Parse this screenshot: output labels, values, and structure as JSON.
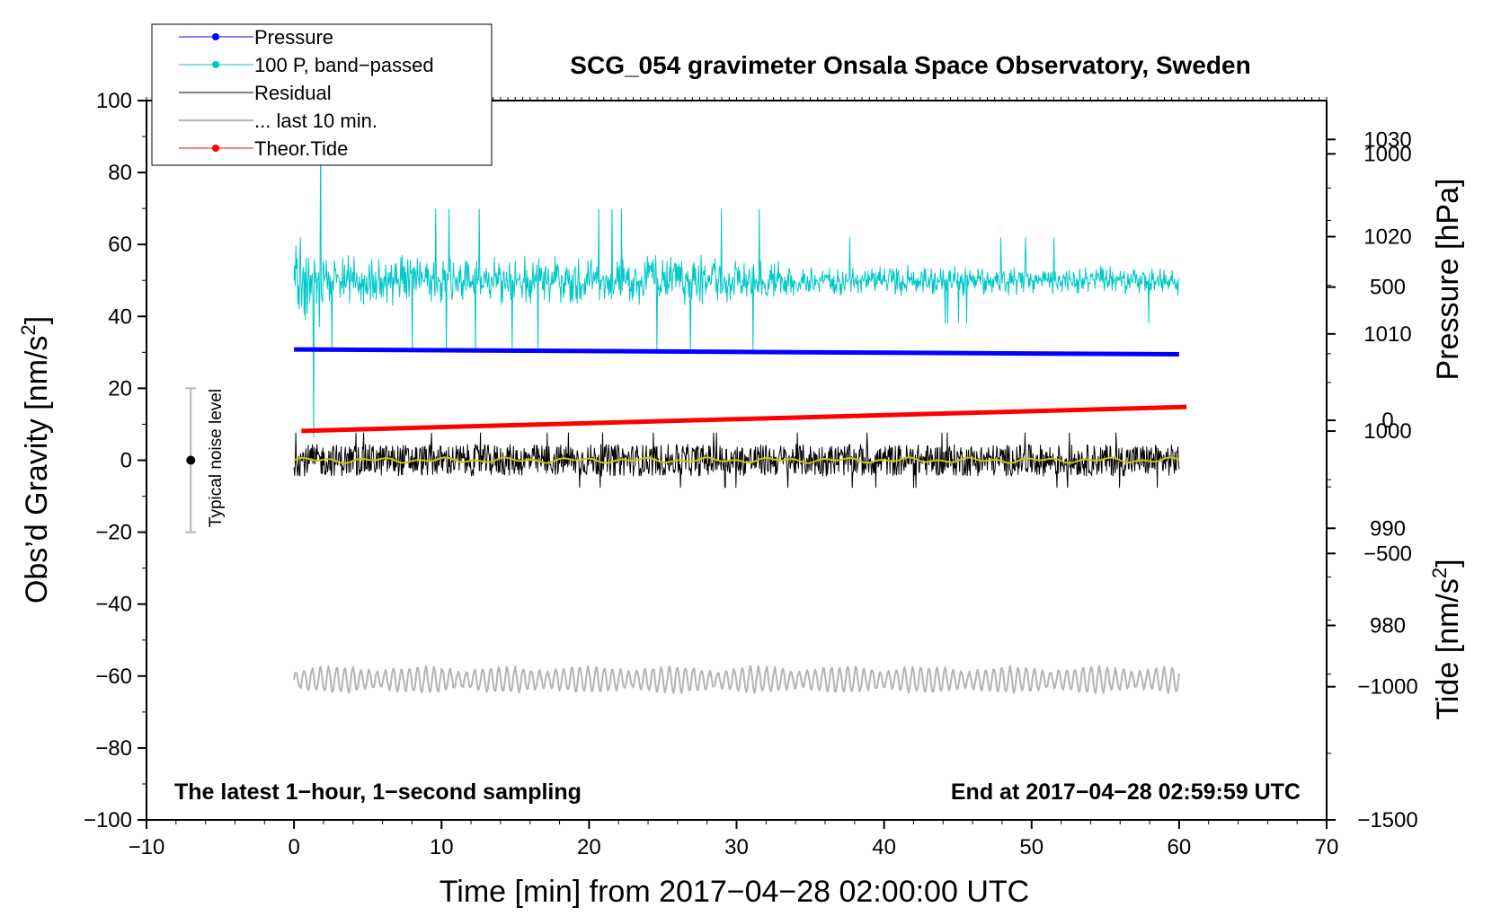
{
  "chart_data": {
    "type": "line",
    "title": "SCG_054 gravimeter Onsala Space Observatory, Sweden",
    "xlabel": "Time [min] from 2017−04−28 02:00:00 UTC",
    "ylabel": "Obs’d Gravity [nm/s²]",
    "ylabel_parts": {
      "main": "Obs’d Gravity [nm/s",
      "sup": "2",
      "end": "]"
    },
    "y2label": "Pressure [hPa]",
    "y3label_parts": {
      "main": "Tide [nm/s",
      "sup": "2",
      "end": "]"
    },
    "xlim": [
      -10,
      70
    ],
    "ylim": [
      -100,
      100
    ],
    "pressure_axis_range": [
      960,
      1034
    ],
    "tide_axis_range": [
      -1500,
      1200
    ],
    "x_ticks": [
      "−10",
      "0",
      "10",
      "20",
      "30",
      "40",
      "50",
      "60",
      "70"
    ],
    "x_tick_values": [
      -10,
      0,
      10,
      20,
      30,
      40,
      50,
      60,
      70
    ],
    "y_ticks": [
      "100",
      "80",
      "60",
      "40",
      "20",
      "0",
      "−20",
      "−40",
      "−60",
      "−80",
      "−100"
    ],
    "y_tick_values": [
      100,
      80,
      60,
      40,
      20,
      0,
      -20,
      -40,
      -60,
      -80,
      -100
    ],
    "pressure_ticks": [
      "1030",
      "1020",
      "1010",
      "1000",
      "990",
      "980"
    ],
    "pressure_tick_values": [
      1030,
      1020,
      1010,
      1000,
      990,
      980
    ],
    "tide_ticks": [
      "1000",
      "500",
      "0",
      "−500",
      "−1000",
      "−1500"
    ],
    "tide_tick_values": [
      1000,
      500,
      0,
      -500,
      -1000,
      -1500
    ],
    "legend": {
      "position": "top-left",
      "entries": [
        {
          "label": "Pressure",
          "color": "#0000ff",
          "marker": true
        },
        {
          "label": "100 P, band−passed",
          "color": "#00c8c8",
          "marker": true
        },
        {
          "label": "Residual",
          "color": "#000000",
          "marker": false
        },
        {
          "label": "... last 10 min.",
          "color": "#b4b4b4",
          "marker": false
        },
        {
          "label": "Theor.Tide",
          "color": "#ff0000",
          "marker": true
        }
      ]
    },
    "series": [
      {
        "name": "Pressure",
        "axis": "pressure",
        "color": "#0000ff",
        "x_range": [
          0,
          60
        ],
        "start_value": 1008.4,
        "end_value": 1007.9
      },
      {
        "name": "100 P, band−passed",
        "axis": "gravity",
        "color": "#00c8c8",
        "x_range": [
          0,
          60
        ],
        "center": 50,
        "amplitude": 9
      },
      {
        "name": "Residual",
        "axis": "gravity",
        "color": "#000000",
        "x_range": [
          0,
          60
        ],
        "center": 0,
        "amplitude": 4
      },
      {
        "name": "... last 10 min.",
        "axis": "gravity",
        "color": "#b4b4b4",
        "x_range": [
          0,
          60
        ],
        "center": -61,
        "amplitude": 3.5
      },
      {
        "name": "Theor.Tide",
        "axis": "tide",
        "color": "#ff0000",
        "x_range": [
          0.5,
          60.5
        ],
        "start_value": -40,
        "end_value": 50
      },
      {
        "axis": "gravity",
        "color": "#c8c800",
        "x_range": [
          0,
          60
        ],
        "center": 0,
        "amplitude": 0.8
      }
    ],
    "noise_indicator": {
      "label": "Typical noise level",
      "x": -7,
      "center": 0,
      "half_range": 20
    },
    "annotations": {
      "left": "The latest 1−hour, 1−second sampling",
      "right": "End at 2017−04−28 02:59:59 UTC"
    },
    "grid": false
  }
}
